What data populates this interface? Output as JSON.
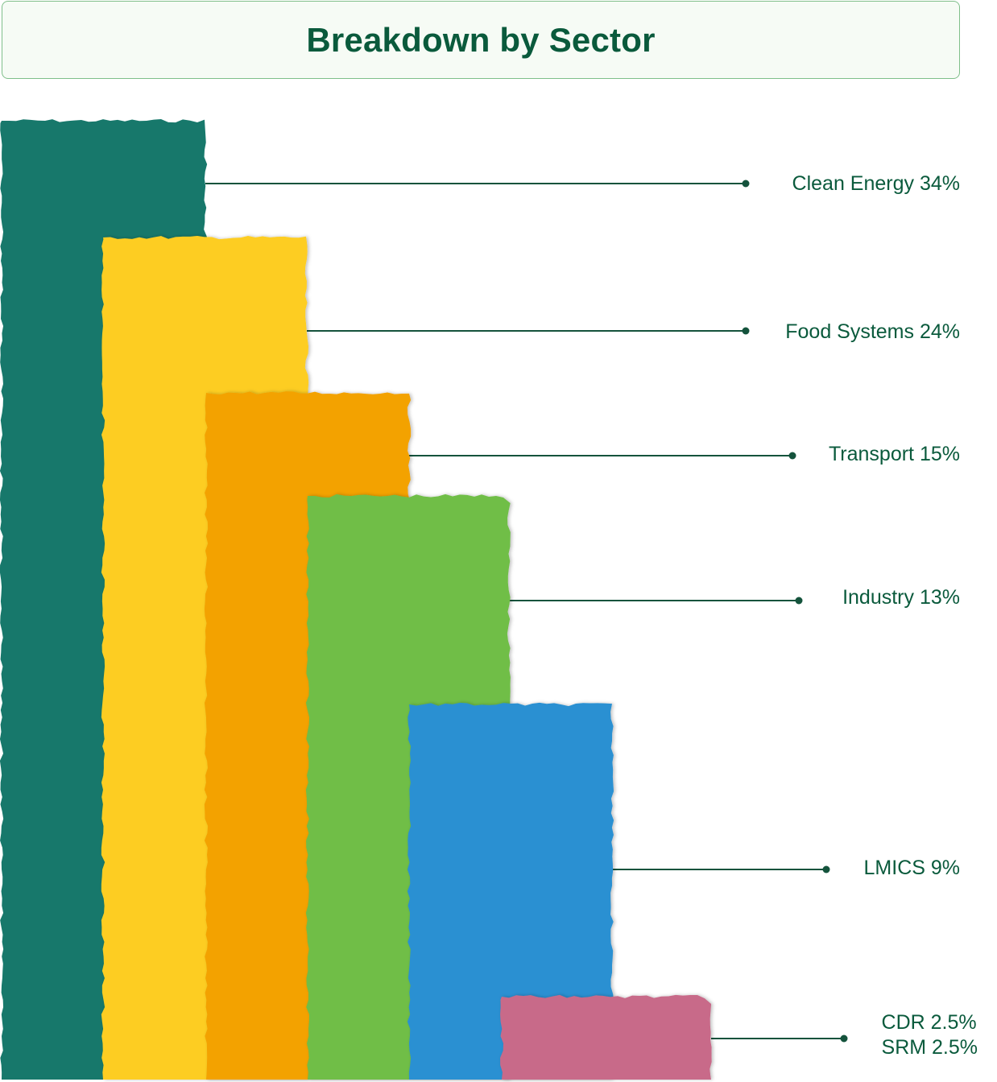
{
  "title": "Breakdown by Sector",
  "colors": {
    "text": "#0a5a3c",
    "leader": "#14533c"
  },
  "chart_data": {
    "type": "bar",
    "title": "Breakdown by Sector",
    "unit": "%",
    "bars": [
      {
        "name": "Clean Energy",
        "value": 34,
        "label": "Clean Energy 34%",
        "color": "#17786b"
      },
      {
        "name": "Food Systems",
        "value": 24,
        "label": "Food Systems 24%",
        "color": "#fdcd24"
      },
      {
        "name": "Transport",
        "value": 15,
        "label": "Transport 15%",
        "color": "#f3a202"
      },
      {
        "name": "Industry",
        "value": 13,
        "label": "Industry 13%",
        "color": "#6fbe46"
      },
      {
        "name": "LMICS",
        "value": 9,
        "label": "LMICS 9%",
        "color": "#2a90d2"
      },
      {
        "name": "CDR / SRM",
        "value": 2.5,
        "label": "CDR 2.5%",
        "label2": "SRM 2.5%",
        "color": "#c86a89"
      }
    ]
  }
}
